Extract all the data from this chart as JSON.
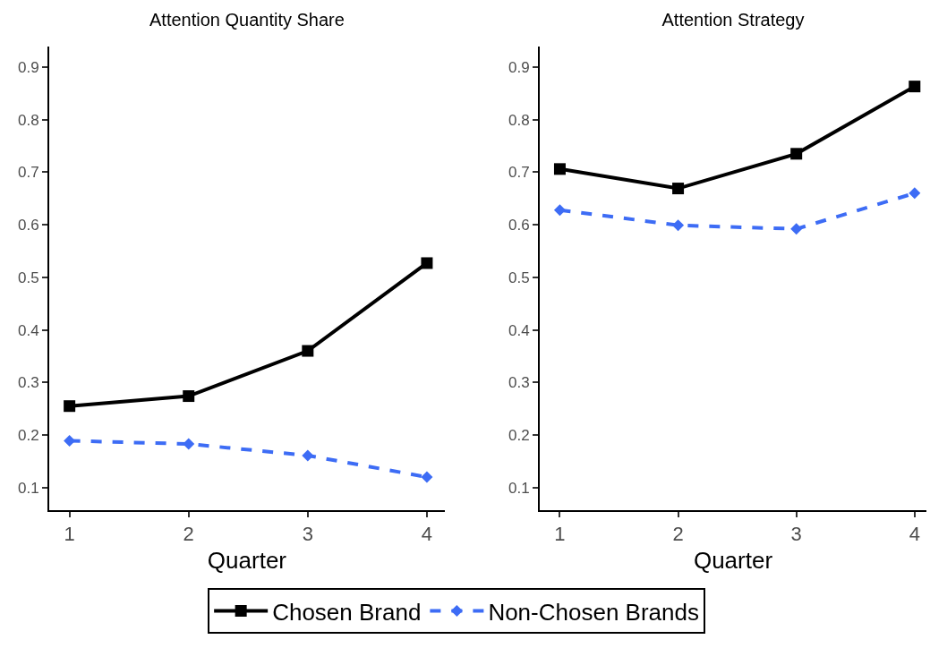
{
  "chart_data": [
    {
      "type": "line",
      "title": "Attention Quantity Share",
      "xlabel": "Quarter",
      "x": [
        1,
        2,
        3,
        4
      ],
      "xlim": [
        0.83,
        4.15
      ],
      "xticks": [
        1,
        2,
        3,
        4
      ],
      "ylim": [
        0.057,
        0.939
      ],
      "yticks": [
        0.1,
        0.2,
        0.3,
        0.4,
        0.5,
        0.6,
        0.7,
        0.8,
        0.9
      ],
      "grid": false,
      "legend": "bottom",
      "series": [
        {
          "name": "Chosen Brand",
          "color": "#000000",
          "marker": "square",
          "line_style": "solid",
          "values": [
            0.255,
            0.274,
            0.36,
            0.527
          ]
        },
        {
          "name": "Non-Chosen Brands",
          "color": "#3d6cf5",
          "marker": "diamond",
          "line_style": "dashed",
          "values": [
            0.189,
            0.183,
            0.161,
            0.12
          ]
        }
      ]
    },
    {
      "type": "line",
      "title": "Attention Strategy",
      "xlabel": "Quarter",
      "x": [
        1,
        2,
        3,
        4
      ],
      "xlim": [
        0.83,
        4.1
      ],
      "xticks": [
        1,
        2,
        3,
        4
      ],
      "ylim": [
        0.057,
        0.939
      ],
      "yticks": [
        0.1,
        0.2,
        0.3,
        0.4,
        0.5,
        0.6,
        0.7,
        0.8,
        0.9
      ],
      "grid": false,
      "legend": false,
      "series": [
        {
          "color": "#000000",
          "marker": "square",
          "line_style": "solid",
          "values": [
            0.706,
            0.669,
            0.735,
            0.863
          ]
        },
        {
          "color": "#3d6cf5",
          "marker": "diamond",
          "line_style": "dashed",
          "values": [
            0.628,
            0.599,
            0.592,
            0.66
          ]
        }
      ]
    }
  ]
}
